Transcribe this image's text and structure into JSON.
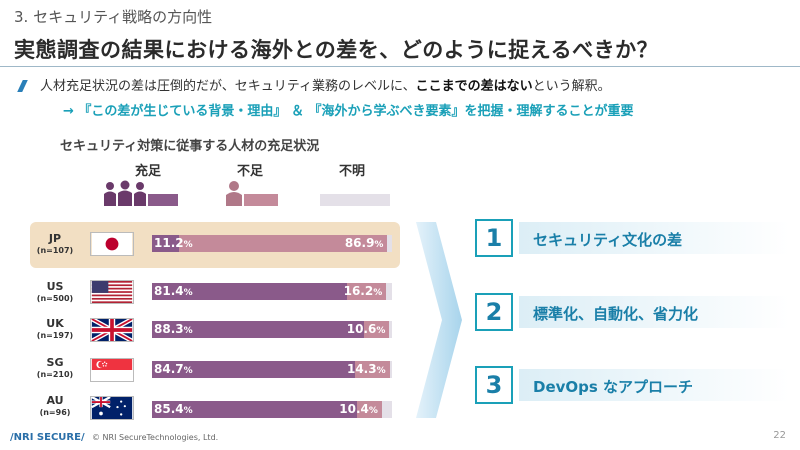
{
  "header": {
    "section_label": "3. セキュリティ戦略の方向性",
    "title": "実態調査の結果における海外との差を、どのように捉えるべきか？"
  },
  "bullet": {
    "text_before": "人材充足状況の差は圧倒的だが、セキュリティ業務のレベルに、",
    "text_bold": "ここまでの差はない",
    "text_after": "という解釈。",
    "subline": "→ 『この差が生じている背景・理由』 ＆ 『海外から学ぶべき要素』を把握・理解することが重要"
  },
  "chart_data": {
    "type": "bar",
    "title": "セキュリティ対策に従事する人材の充足状況",
    "legend": [
      "充足",
      "不足",
      "不明"
    ],
    "colors": {
      "sufficient": "#8a5a8a",
      "insufficient": "#c48a9a",
      "unknown": "#e4e0e8"
    },
    "categories": [
      {
        "code": "JP",
        "n": "(n=107)",
        "sufficient": 11.2,
        "insufficient": 86.9,
        "sufficient_label": "11.2",
        "insufficient_label": "86.9"
      },
      {
        "code": "US",
        "n": "(n=500)",
        "sufficient": 81.4,
        "insufficient": 16.2,
        "sufficient_label": "81.4",
        "insufficient_label": "16.2"
      },
      {
        "code": "UK",
        "n": "(n=197)",
        "sufficient": 88.3,
        "insufficient": 10.6,
        "sufficient_label": "88.3",
        "insufficient_label": "10.6"
      },
      {
        "code": "SG",
        "n": "(n=210)",
        "sufficient": 84.7,
        "insufficient": 14.3,
        "sufficient_label": "84.7",
        "insufficient_label": "14.3"
      },
      {
        "code": "AU",
        "n": "(n=96)",
        "sufficient": 85.4,
        "insufficient": 10.4,
        "sufficient_label": "85.4",
        "insufficient_label": "10.4"
      }
    ],
    "unit": "%"
  },
  "flags": [
    "japan-flag-icon",
    "usa-flag-icon",
    "uk-flag-icon",
    "singapore-flag-icon",
    "australia-flag-icon"
  ],
  "points": [
    {
      "number": "1",
      "text": "セキュリティ文化の差"
    },
    {
      "number": "2",
      "text": "標準化、自動化、省力化"
    },
    {
      "number": "3",
      "text": "DevOps なアプローチ"
    }
  ],
  "footer": {
    "logo": "/NRI SECURE/",
    "copyright": "© NRI SecureTechnologies, Ltd.",
    "page": "22"
  }
}
